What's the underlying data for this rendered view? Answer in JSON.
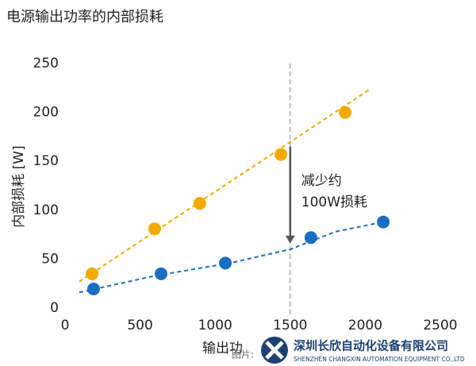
{
  "chart_data": {
    "type": "scatter",
    "title": "电源输出功率的内部损耗",
    "y_label": "内部损耗 [W]",
    "x_label": "输出功",
    "xlim": [
      0,
      2500
    ],
    "xticks": [
      0,
      500,
      1000,
      1500,
      2000,
      2500
    ],
    "ylim": [
      0,
      250
    ],
    "yticks": [
      0,
      50,
      100,
      150,
      200,
      250
    ],
    "grid": false,
    "series": [
      {
        "color": "#f2a900",
        "x": [
          180,
          597,
          898,
          1438,
          1866
        ],
        "values": [
          35,
          81,
          107,
          157,
          200
        ],
        "trend": {
          "x": [
            95,
            2024
          ],
          "values": [
            27,
            223
          ]
        }
      },
      {
        "color": "#1a6fc4",
        "x": [
          190,
          640,
          1068,
          1638,
          2120
        ],
        "values": [
          19.5,
          35,
          46,
          72,
          88
        ],
        "trend": {
          "x": [
            95,
            600,
            1100,
            1500,
            1800,
            2150
          ],
          "values": [
            16,
            33,
            46,
            60,
            78,
            89
          ]
        }
      }
    ],
    "reference_x": 1500,
    "annotation": {
      "from": 165,
      "to": 66,
      "lines": [
        "减少约",
        "100W损耗"
      ]
    },
    "watermark": {
      "prefix": "图片:",
      "company": "深圳长欣自动化设备有限公司",
      "company_en": "SHENZHEN CHANGXIN AUTOMATION EQUIPMENT CO.,LTD"
    }
  }
}
